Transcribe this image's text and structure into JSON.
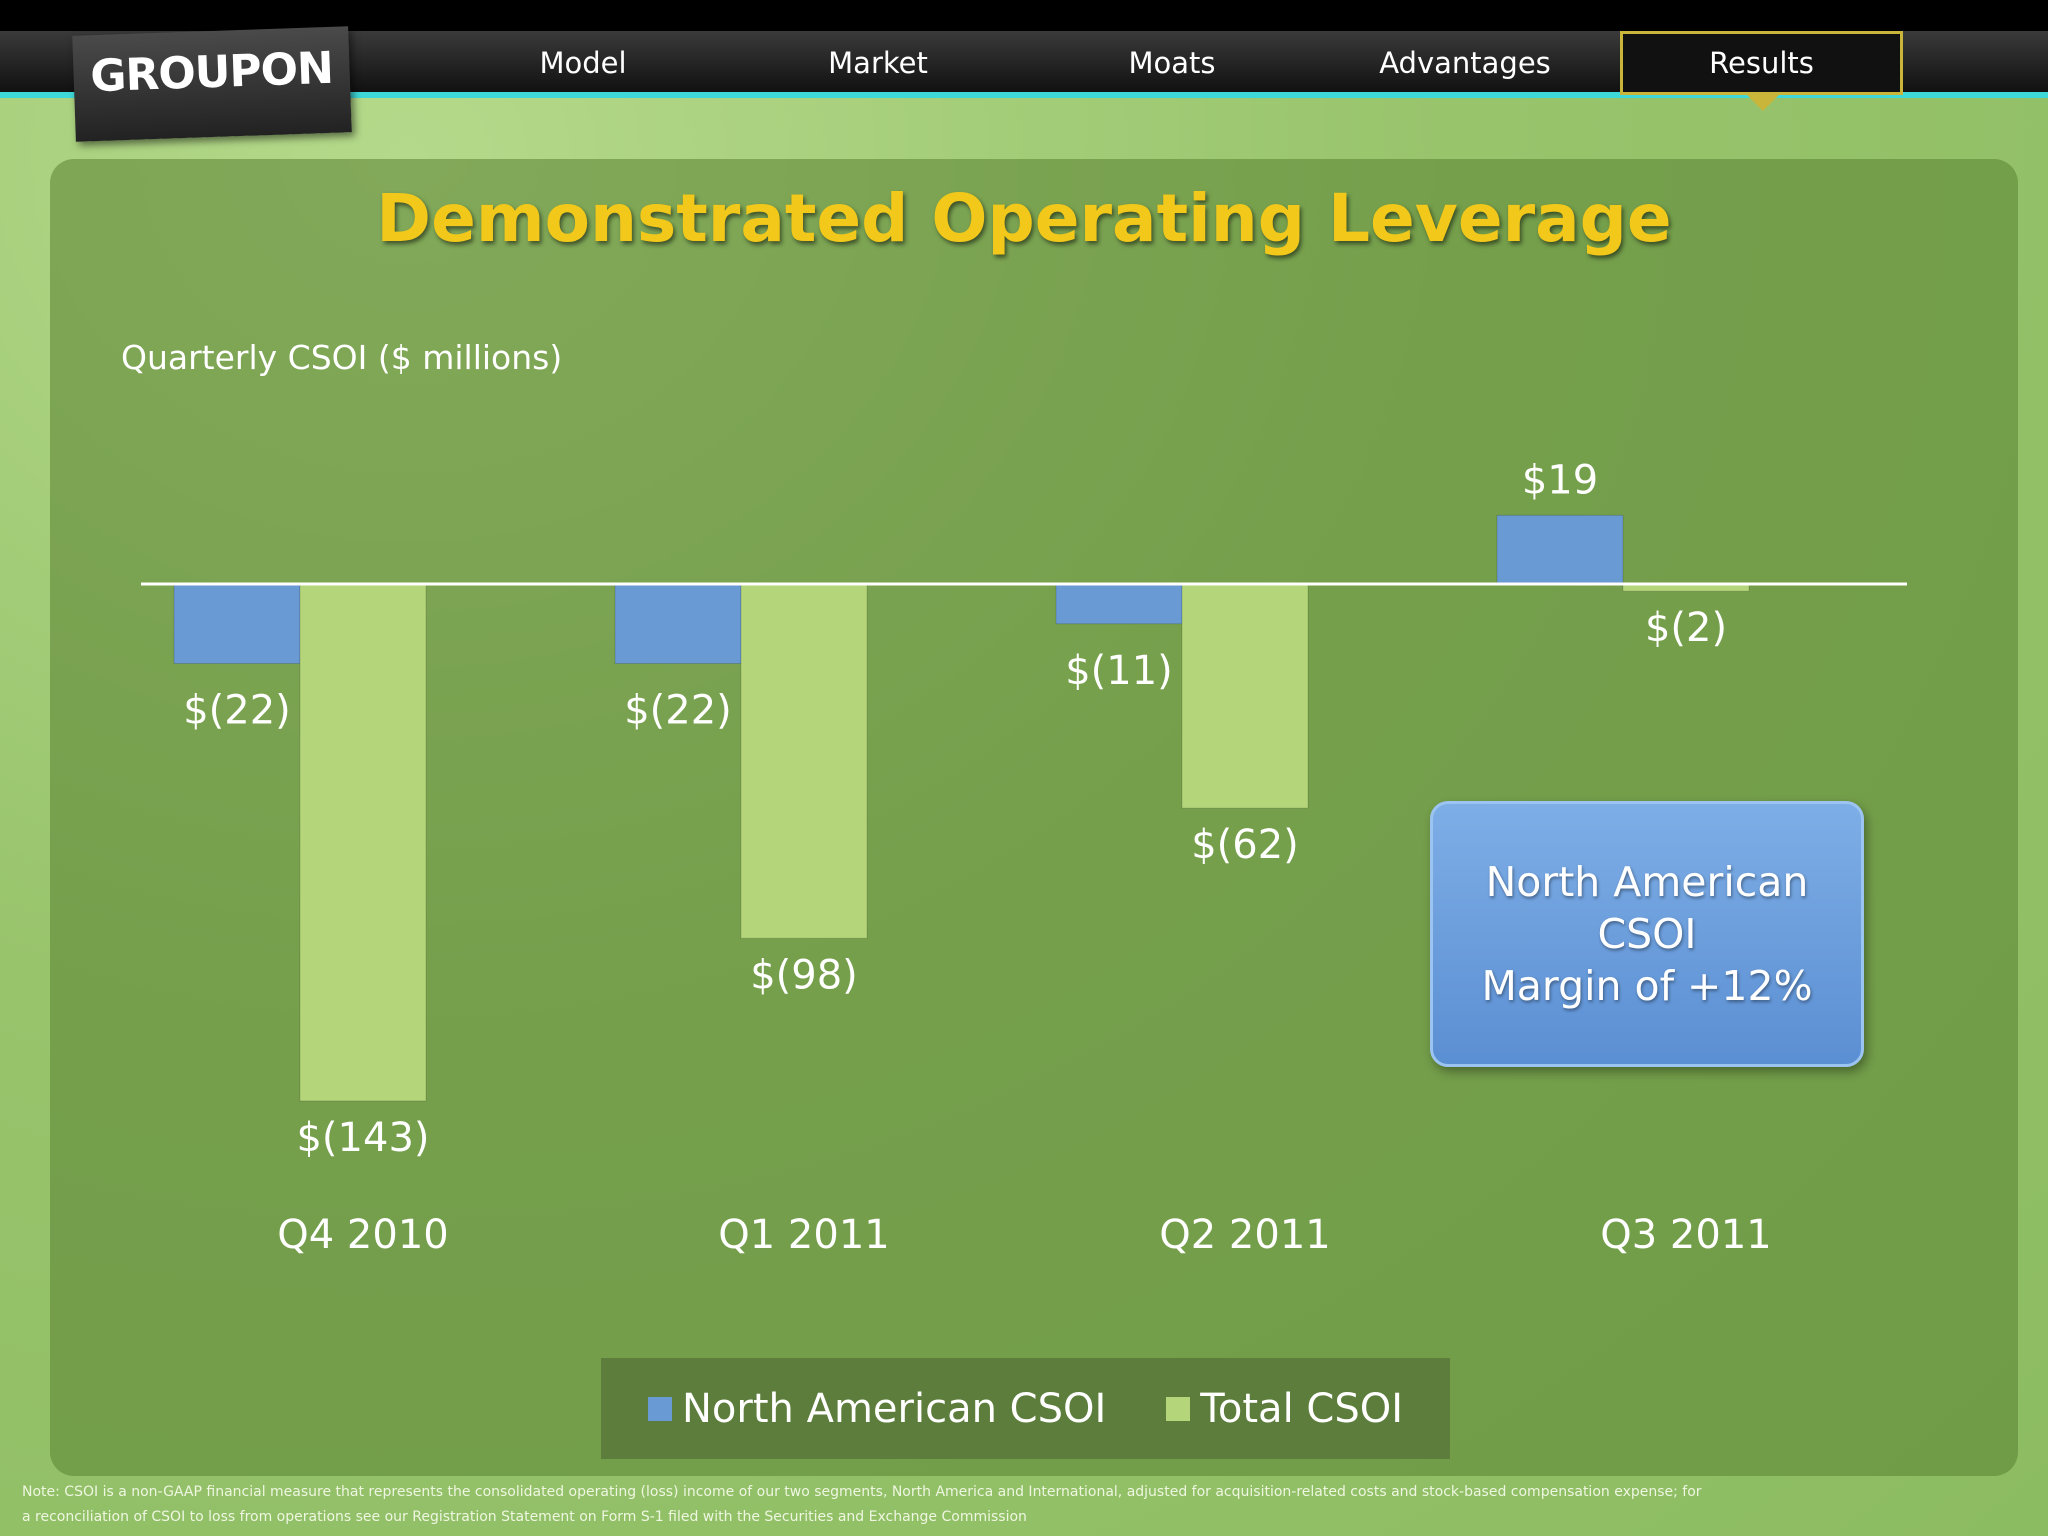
{
  "nav": {
    "logo": "GROUPON",
    "items": [
      "Model",
      "Market",
      "Moats",
      "Advantages"
    ],
    "active": "Results"
  },
  "title": "Demonstrated Operating Leverage",
  "chart_data": {
    "type": "bar",
    "title": "Demonstrated Operating Leverage",
    "ylabel": "Quarterly CSOI ($ millions)",
    "categories": [
      "Q4 2010",
      "Q1 2011",
      "Q2 2011",
      "Q3 2011"
    ],
    "series": [
      {
        "name": "North American CSOI",
        "color": "#6a9ad4",
        "values": [
          -22,
          -22,
          -11,
          19
        ],
        "labels": [
          "$(22)",
          "$(22)",
          "$(11)",
          "$19"
        ]
      },
      {
        "name": "Total CSOI",
        "color": "#b5d57a",
        "values": [
          -143,
          -98,
          -62,
          -2
        ],
        "labels": [
          "$(143)",
          "$(98)",
          "$(62)",
          "$(2)"
        ]
      }
    ],
    "legend": "bottom",
    "grid": false
  },
  "callout": {
    "line1": "North American",
    "line2": "CSOI",
    "line3": "Margin of +12%"
  },
  "footnote": {
    "line1": "Note: CSOI is a non-GAAP financial measure that represents the consolidated operating (loss) income of our two segments, North America and International, adjusted for acquisition-related costs and stock-based compensation expense; for",
    "line2": "a reconciliation of CSOI to loss from operations see our Registration Statement on Form S-1 filed with the Securities and Exchange Commission"
  }
}
